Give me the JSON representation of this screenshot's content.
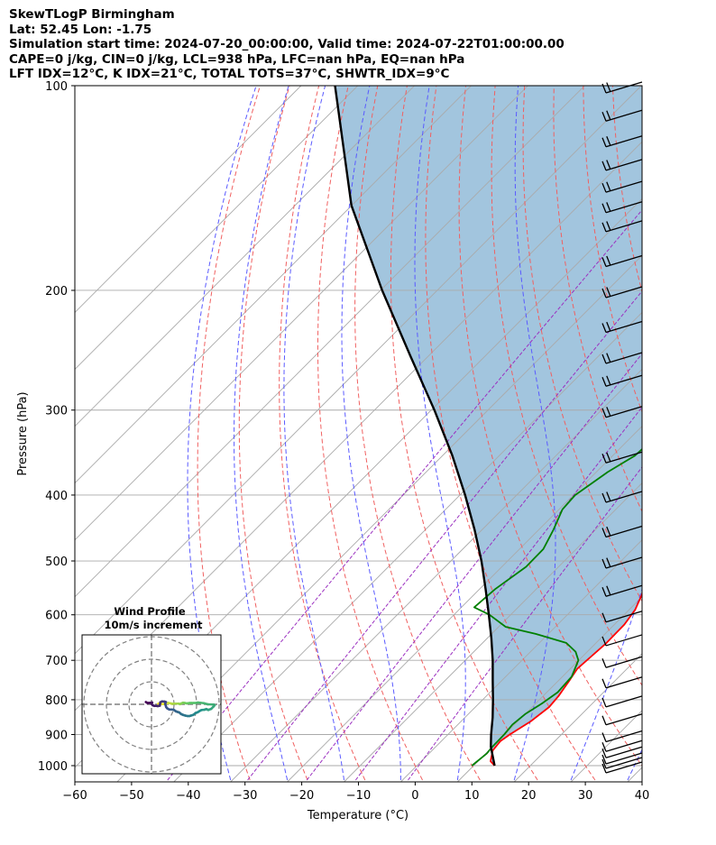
{
  "header": {
    "title": "SkewTLogP Birmingham",
    "location": "Lat: 52.45   Lon: -1.75",
    "simulation": "Simulation start time: 2024-07-20_00:00:00, Valid time: 2024-07-22T01:00:00.00",
    "indices1": "CAPE=0 j/kg, CIN=0 j/kg, LCL=938 hPa, LFC=nan hPa, EQ=nan hPa",
    "indices2": "LFT IDX=12°C, K IDX=21°C, TOTAL TOTS=37°C, SHWTR_IDX=9°C"
  },
  "chart_data": {
    "type": "line",
    "title": "SkewTLogP Birmingham",
    "xlabel": "Temperature (°C)",
    "ylabel": "Pressure (hPa)",
    "xlim": [
      -60,
      40
    ],
    "ylim": [
      1050,
      100
    ],
    "yscale": "log",
    "skew": "45 degrees",
    "x_ticks": [
      "−60",
      "−50",
      "−40",
      "−30",
      "−20",
      "−10",
      "0",
      "10",
      "20",
      "30",
      "40"
    ],
    "y_ticks": [
      "100",
      "200",
      "300",
      "400",
      "500",
      "600",
      "700",
      "800",
      "900",
      "1000"
    ],
    "series": [
      {
        "kind": "temperature",
        "color": "#ff0000",
        "points": [
          [
            1000,
            14
          ],
          [
            985,
            12.5
          ],
          [
            950,
            11
          ],
          [
            920,
            10.7
          ],
          [
            900,
            11.2
          ],
          [
            860,
            12.6
          ],
          [
            820,
            13.3
          ],
          [
            790,
            13
          ],
          [
            750,
            12.2
          ],
          [
            720,
            11.5
          ],
          [
            690,
            11.8
          ],
          [
            660,
            12.1
          ],
          [
            620,
            12
          ],
          [
            590,
            11.3
          ],
          [
            560,
            9.8
          ],
          [
            530,
            7.5
          ],
          [
            500,
            5
          ],
          [
            470,
            2.9
          ],
          [
            440,
            0.5
          ],
          [
            410,
            -2.2
          ],
          [
            380,
            -5
          ],
          [
            360,
            -7.3
          ],
          [
            340,
            -9.5
          ],
          [
            320,
            -12
          ],
          [
            300,
            -14.5
          ],
          [
            285,
            -16.7
          ],
          [
            275,
            -18.3
          ],
          [
            265,
            -19.4
          ],
          [
            250,
            -19.8
          ],
          [
            230,
            -20.5
          ],
          [
            210,
            -22
          ],
          [
            190,
            -23.8
          ],
          [
            170,
            -25.5
          ],
          [
            155,
            -27.3
          ],
          [
            145,
            -28.8
          ],
          [
            130,
            -31
          ],
          [
            115,
            -33.5
          ],
          [
            105,
            -35.4
          ],
          [
            100,
            -36.3
          ]
        ]
      },
      {
        "kind": "dewpoint",
        "color": "#008000",
        "points": [
          [
            1000,
            10
          ],
          [
            960,
            10.5
          ],
          [
            940,
            10.3
          ],
          [
            900,
            10.2
          ],
          [
            870,
            9.9
          ],
          [
            840,
            10.3
          ],
          [
            810,
            11.4
          ],
          [
            780,
            12.2
          ],
          [
            740,
            11.9
          ],
          [
            700,
            10.2
          ],
          [
            680,
            8.2
          ],
          [
            660,
            5
          ],
          [
            640,
            -2
          ],
          [
            625,
            -8.5
          ],
          [
            600,
            -13.5
          ],
          [
            585,
            -17.5
          ],
          [
            550,
            -17
          ],
          [
            510,
            -15.5
          ],
          [
            480,
            -15.6
          ],
          [
            450,
            -17.2
          ],
          [
            420,
            -19.2
          ],
          [
            400,
            -19.5
          ],
          [
            370,
            -17.8
          ],
          [
            350,
            -15.9
          ],
          [
            335,
            -15.7
          ],
          [
            320,
            -17.2
          ],
          [
            305,
            -19.4
          ],
          [
            290,
            -21.7
          ],
          [
            270,
            -24.2
          ],
          [
            250,
            -26.5
          ],
          [
            230,
            -28.5
          ],
          [
            210,
            -30.6
          ],
          [
            195,
            -32.2
          ],
          [
            182,
            -34.5
          ],
          [
            165,
            -38
          ],
          [
            155,
            -40.2
          ],
          [
            150,
            -42
          ],
          [
            140,
            -42
          ],
          [
            125,
            -42.8
          ],
          [
            110,
            -44
          ],
          [
            100,
            -45
          ]
        ]
      },
      {
        "kind": "parcel",
        "color": "#000000",
        "points": [
          [
            1000,
            14
          ],
          [
            938,
            10
          ],
          [
            900,
            7.9
          ],
          [
            850,
            5.2
          ],
          [
            800,
            2.1
          ],
          [
            750,
            -1.3
          ],
          [
            700,
            -4.9
          ],
          [
            650,
            -9
          ],
          [
            600,
            -13.6
          ],
          [
            550,
            -18.7
          ],
          [
            500,
            -24.4
          ],
          [
            450,
            -31.1
          ],
          [
            400,
            -38.9
          ],
          [
            350,
            -48.1
          ],
          [
            300,
            -59.3
          ],
          [
            250,
            -73
          ],
          [
            200,
            -89.6
          ],
          [
            150,
            -110
          ],
          [
            100,
            -134
          ]
        ]
      }
    ],
    "inset": {
      "title": "Wind Profile",
      "subtitle": "10m/s increment",
      "hodograph_uv": [
        [
          3,
          0.3
        ],
        [
          4,
          0.2
        ],
        [
          5,
          0.1
        ],
        [
          5.8,
          0.3
        ],
        [
          6.4,
          0.5
        ],
        [
          6.8,
          0.4
        ],
        [
          7.5,
          0.6
        ],
        [
          8.5,
          0.4
        ],
        [
          9.3,
          0.2
        ],
        [
          9.8,
          0.3
        ],
        [
          11.2,
          0.3
        ],
        [
          12,
          0.3
        ],
        [
          12.6,
          0.1
        ],
        [
          13.3,
          0.4
        ],
        [
          14,
          0.7
        ],
        [
          14.8,
          0.6
        ],
        [
          15.5,
          0.4
        ],
        [
          16.2,
          0.5
        ],
        [
          17,
          0.6
        ],
        [
          17.7,
          0.6
        ],
        [
          18.8,
          0.6
        ],
        [
          19.7,
          0.6
        ],
        [
          20.6,
          0.8
        ],
        [
          21.6,
          0.7
        ],
        [
          23.2,
          0.5
        ],
        [
          25,
          0
        ],
        [
          27.6,
          -0.1
        ],
        [
          28,
          -0.4
        ],
        [
          27.5,
          -1
        ],
        [
          26.5,
          -2
        ],
        [
          25.2,
          -2.5
        ],
        [
          24.3,
          -2.1
        ],
        [
          23.5,
          -2.4
        ],
        [
          22.5,
          -2.5
        ],
        [
          22,
          -2.6
        ],
        [
          21.3,
          -3
        ],
        [
          20.5,
          -3.5
        ],
        [
          19.5,
          -3.9
        ],
        [
          18.5,
          -4.7
        ],
        [
          17.5,
          -5
        ],
        [
          16.8,
          -5.2
        ],
        [
          16,
          -5.2
        ],
        [
          15,
          -5
        ],
        [
          14,
          -4.7
        ],
        [
          13.1,
          -4.3
        ],
        [
          12.3,
          -3.6
        ],
        [
          11.6,
          -3.4
        ],
        [
          10.8,
          -3.1
        ],
        [
          9.8,
          -2.4
        ],
        [
          8.9,
          -2.3
        ],
        [
          7.9,
          -2.3
        ],
        [
          7,
          -1.8
        ],
        [
          6.5,
          -1.2
        ],
        [
          6.2,
          -0.2
        ],
        [
          6.1,
          0.6
        ],
        [
          6.4,
          1
        ],
        [
          5.8,
          1.2
        ],
        [
          4.7,
          1.3
        ],
        [
          3.9,
          0.9
        ],
        [
          3.8,
          0.1
        ],
        [
          3.7,
          -0.6
        ],
        [
          2.8,
          -0.8
        ],
        [
          2,
          -0.7
        ],
        [
          1.3,
          -0.7
        ],
        [
          0.5,
          -0.4
        ],
        [
          0,
          0.3
        ],
        [
          0.3,
          0.8
        ],
        [
          -0.5,
          0.7
        ],
        [
          -1.2,
          0.6
        ],
        [
          -1.8,
          0.6
        ],
        [
          -2.5,
          1
        ]
      ]
    },
    "wind_barbs_hpa": [
      1000,
      985,
      970,
      950,
      930,
      900,
      850,
      800,
      750,
      700,
      650,
      600,
      550,
      500,
      450,
      400,
      350,
      300,
      270,
      250,
      225,
      200,
      180,
      160,
      150,
      140,
      130,
      120,
      110,
      100
    ]
  }
}
